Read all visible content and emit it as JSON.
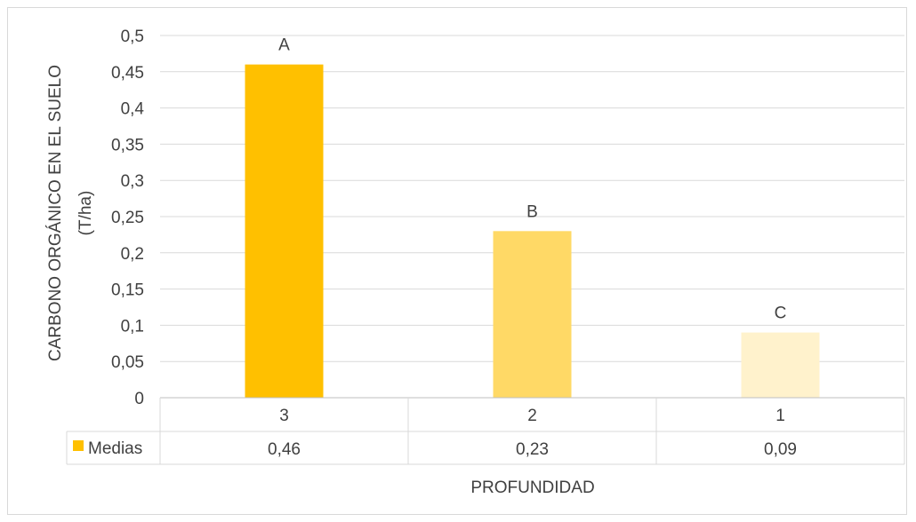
{
  "chart_data": {
    "type": "bar",
    "title": "",
    "xlabel": "PROFUNDIDAD",
    "ylabel_lines": [
      "CARBONO ORGÁNICO EN EL SUELO",
      "(T/ha)"
    ],
    "ylim": [
      0,
      0.5
    ],
    "y_ticks": [
      "0",
      "0,05",
      "0,1",
      "0,15",
      "0,2",
      "0,25",
      "0,3",
      "0,35",
      "0,4",
      "0,45",
      "0,5"
    ],
    "categories": [
      "3",
      "2",
      "1"
    ],
    "values": [
      0.46,
      0.23,
      0.09
    ],
    "bar_letters": [
      "A",
      "B",
      "C"
    ],
    "bar_colors": [
      "#ffc000",
      "#ffd966",
      "#fff2cc"
    ],
    "gridlines": true,
    "data_table": {
      "series_name": "Medias",
      "legend_color": "#ffc000",
      "values_text": [
        "0,46",
        "0,23",
        "0,09"
      ]
    }
  }
}
